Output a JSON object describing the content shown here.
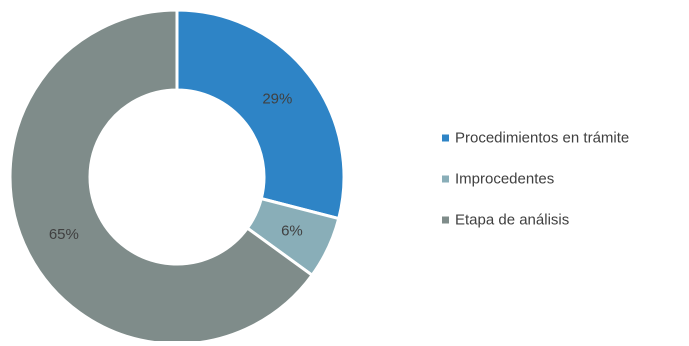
{
  "chart_data": {
    "type": "pie",
    "subtype": "donut",
    "title": "",
    "series": [
      {
        "name": "Procedimientos en trámite",
        "value": 29,
        "label": "29%",
        "color": "#2e84c6"
      },
      {
        "name": "Improcedentes",
        "value": 6,
        "label": "6%",
        "color": "#89aeb8"
      },
      {
        "name": "Etapa de análisis",
        "value": 65,
        "label": "65%",
        "color": "#7f8c8a"
      }
    ],
    "legend_position": "right"
  }
}
